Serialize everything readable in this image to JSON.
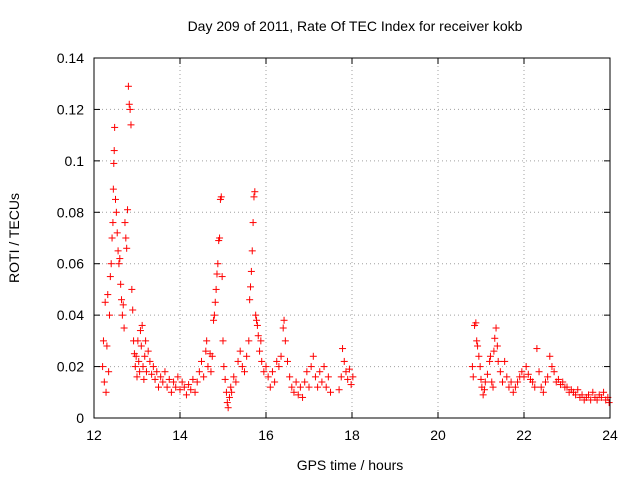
{
  "chart_data": {
    "type": "scatter",
    "title": "Day 209 of 2011, Rate Of TEC Index for receiver kokb",
    "xlabel": "GPS time / hours",
    "ylabel": "ROTI / TECUs",
    "xlim": [
      12,
      24
    ],
    "ylim": [
      0,
      0.14
    ],
    "xticks": [
      "12",
      "14",
      "16",
      "18",
      "20",
      "22",
      "24"
    ],
    "yticks": [
      "0",
      "0.02",
      "0.04",
      "0.06",
      "0.08",
      "0.1",
      "0.12",
      "0.14"
    ],
    "grid": true,
    "marker": "+",
    "color": "#ff0000",
    "points": [
      [
        12.2,
        0.02
      ],
      [
        12.22,
        0.03
      ],
      [
        12.24,
        0.014
      ],
      [
        12.26,
        0.045
      ],
      [
        12.28,
        0.01
      ],
      [
        12.3,
        0.028
      ],
      [
        12.32,
        0.048
      ],
      [
        12.34,
        0.018
      ],
      [
        12.36,
        0.04
      ],
      [
        12.38,
        0.055
      ],
      [
        12.4,
        0.06
      ],
      [
        12.42,
        0.07
      ],
      [
        12.44,
        0.076
      ],
      [
        12.45,
        0.089
      ],
      [
        12.46,
        0.099
      ],
      [
        12.47,
        0.104
      ],
      [
        12.48,
        0.113
      ],
      [
        12.5,
        0.085
      ],
      [
        12.52,
        0.08
      ],
      [
        12.54,
        0.072
      ],
      [
        12.56,
        0.065
      ],
      [
        12.58,
        0.06
      ],
      [
        12.6,
        0.062
      ],
      [
        12.62,
        0.052
      ],
      [
        12.64,
        0.046
      ],
      [
        12.66,
        0.04
      ],
      [
        12.68,
        0.044
      ],
      [
        12.7,
        0.035
      ],
      [
        12.72,
        0.076
      ],
      [
        12.74,
        0.07
      ],
      [
        12.76,
        0.066
      ],
      [
        12.78,
        0.081
      ],
      [
        12.8,
        0.129
      ],
      [
        12.82,
        0.122
      ],
      [
        12.84,
        0.12
      ],
      [
        12.86,
        0.114
      ],
      [
        12.88,
        0.05
      ],
      [
        12.9,
        0.042
      ],
      [
        12.92,
        0.03
      ],
      [
        12.94,
        0.025
      ],
      [
        12.96,
        0.02
      ],
      [
        12.98,
        0.024
      ],
      [
        13.0,
        0.016
      ],
      [
        13.02,
        0.03
      ],
      [
        13.04,
        0.022
      ],
      [
        13.06,
        0.018
      ],
      [
        13.08,
        0.034
      ],
      [
        13.1,
        0.028
      ],
      [
        13.12,
        0.036
      ],
      [
        13.14,
        0.02
      ],
      [
        13.16,
        0.015
      ],
      [
        13.18,
        0.024
      ],
      [
        13.2,
        0.03
      ],
      [
        13.22,
        0.018
      ],
      [
        13.26,
        0.026
      ],
      [
        13.3,
        0.022
      ],
      [
        13.34,
        0.017
      ],
      [
        13.38,
        0.02
      ],
      [
        13.42,
        0.015
      ],
      [
        13.46,
        0.018
      ],
      [
        13.5,
        0.012
      ],
      [
        13.55,
        0.016
      ],
      [
        13.6,
        0.014
      ],
      [
        13.65,
        0.018
      ],
      [
        13.7,
        0.012
      ],
      [
        13.75,
        0.015
      ],
      [
        13.8,
        0.01
      ],
      [
        13.85,
        0.014
      ],
      [
        13.9,
        0.012
      ],
      [
        13.95,
        0.016
      ],
      [
        14.0,
        0.011
      ],
      [
        14.05,
        0.014
      ],
      [
        14.1,
        0.012
      ],
      [
        14.15,
        0.009
      ],
      [
        14.2,
        0.013
      ],
      [
        14.25,
        0.011
      ],
      [
        14.3,
        0.015
      ],
      [
        14.35,
        0.01
      ],
      [
        14.4,
        0.014
      ],
      [
        14.45,
        0.018
      ],
      [
        14.5,
        0.022
      ],
      [
        14.55,
        0.016
      ],
      [
        14.6,
        0.026
      ],
      [
        14.62,
        0.03
      ],
      [
        14.65,
        0.02
      ],
      [
        14.7,
        0.025
      ],
      [
        14.72,
        0.018
      ],
      [
        14.75,
        0.024
      ],
      [
        14.78,
        0.038
      ],
      [
        14.8,
        0.04
      ],
      [
        14.82,
        0.045
      ],
      [
        14.84,
        0.05
      ],
      [
        14.86,
        0.056
      ],
      [
        14.88,
        0.06
      ],
      [
        14.9,
        0.069
      ],
      [
        14.92,
        0.07
      ],
      [
        14.94,
        0.085
      ],
      [
        14.96,
        0.086
      ],
      [
        14.98,
        0.055
      ],
      [
        15.0,
        0.03
      ],
      [
        15.02,
        0.02
      ],
      [
        15.05,
        0.015
      ],
      [
        15.08,
        0.01
      ],
      [
        15.1,
        0.006
      ],
      [
        15.12,
        0.004
      ],
      [
        15.15,
        0.008
      ],
      [
        15.18,
        0.012
      ],
      [
        15.2,
        0.01
      ],
      [
        15.25,
        0.016
      ],
      [
        15.3,
        0.014
      ],
      [
        15.35,
        0.022
      ],
      [
        15.4,
        0.026
      ],
      [
        15.45,
        0.02
      ],
      [
        15.5,
        0.018
      ],
      [
        15.55,
        0.024
      ],
      [
        15.6,
        0.03
      ],
      [
        15.62,
        0.046
      ],
      [
        15.64,
        0.051
      ],
      [
        15.66,
        0.057
      ],
      [
        15.68,
        0.065
      ],
      [
        15.7,
        0.076
      ],
      [
        15.72,
        0.086
      ],
      [
        15.74,
        0.088
      ],
      [
        15.76,
        0.04
      ],
      [
        15.78,
        0.038
      ],
      [
        15.8,
        0.036
      ],
      [
        15.82,
        0.032
      ],
      [
        15.85,
        0.026
      ],
      [
        15.88,
        0.03
      ],
      [
        15.9,
        0.022
      ],
      [
        15.95,
        0.018
      ],
      [
        16.0,
        0.02
      ],
      [
        16.05,
        0.016
      ],
      [
        16.1,
        0.012
      ],
      [
        16.15,
        0.018
      ],
      [
        16.2,
        0.014
      ],
      [
        16.25,
        0.022
      ],
      [
        16.3,
        0.02
      ],
      [
        16.35,
        0.024
      ],
      [
        16.4,
        0.035
      ],
      [
        16.42,
        0.038
      ],
      [
        16.45,
        0.03
      ],
      [
        16.5,
        0.022
      ],
      [
        16.55,
        0.016
      ],
      [
        16.6,
        0.012
      ],
      [
        16.65,
        0.01
      ],
      [
        16.7,
        0.014
      ],
      [
        16.75,
        0.009
      ],
      [
        16.8,
        0.012
      ],
      [
        16.85,
        0.008
      ],
      [
        16.9,
        0.014
      ],
      [
        16.95,
        0.018
      ],
      [
        17.0,
        0.012
      ],
      [
        17.05,
        0.02
      ],
      [
        17.1,
        0.024
      ],
      [
        17.15,
        0.016
      ],
      [
        17.2,
        0.012
      ],
      [
        17.25,
        0.018
      ],
      [
        17.3,
        0.014
      ],
      [
        17.35,
        0.02
      ],
      [
        17.4,
        0.012
      ],
      [
        17.45,
        0.016
      ],
      [
        17.5,
        0.01
      ],
      [
        17.7,
        0.011
      ],
      [
        17.75,
        0.016
      ],
      [
        17.78,
        0.027
      ],
      [
        17.82,
        0.022
      ],
      [
        17.86,
        0.018
      ],
      [
        17.9,
        0.015
      ],
      [
        17.94,
        0.019
      ],
      [
        17.98,
        0.013
      ],
      [
        18.02,
        0.016
      ],
      [
        20.8,
        0.02
      ],
      [
        20.82,
        0.016
      ],
      [
        20.85,
        0.036
      ],
      [
        20.88,
        0.037
      ],
      [
        20.9,
        0.03
      ],
      [
        20.92,
        0.028
      ],
      [
        20.95,
        0.024
      ],
      [
        20.98,
        0.02
      ],
      [
        21.0,
        0.015
      ],
      [
        21.02,
        0.012
      ],
      [
        21.05,
        0.009
      ],
      [
        21.08,
        0.011
      ],
      [
        21.1,
        0.014
      ],
      [
        21.15,
        0.017
      ],
      [
        21.2,
        0.022
      ],
      [
        21.22,
        0.024
      ],
      [
        21.25,
        0.014
      ],
      [
        21.28,
        0.012
      ],
      [
        21.3,
        0.026
      ],
      [
        21.32,
        0.031
      ],
      [
        21.35,
        0.035
      ],
      [
        21.38,
        0.028
      ],
      [
        21.4,
        0.022
      ],
      [
        21.45,
        0.018
      ],
      [
        21.5,
        0.014
      ],
      [
        21.55,
        0.022
      ],
      [
        21.6,
        0.016
      ],
      [
        21.65,
        0.012
      ],
      [
        21.7,
        0.014
      ],
      [
        21.75,
        0.01
      ],
      [
        21.8,
        0.012
      ],
      [
        21.85,
        0.014
      ],
      [
        21.9,
        0.016
      ],
      [
        21.95,
        0.018
      ],
      [
        22.0,
        0.016
      ],
      [
        22.05,
        0.02
      ],
      [
        22.1,
        0.017
      ],
      [
        22.15,
        0.015
      ],
      [
        22.2,
        0.014
      ],
      [
        22.25,
        0.012
      ],
      [
        22.3,
        0.027
      ],
      [
        22.35,
        0.018
      ],
      [
        22.4,
        0.012
      ],
      [
        22.45,
        0.01
      ],
      [
        22.5,
        0.014
      ],
      [
        22.55,
        0.016
      ],
      [
        22.6,
        0.024
      ],
      [
        22.65,
        0.02
      ],
      [
        22.7,
        0.018
      ],
      [
        22.75,
        0.014
      ],
      [
        22.8,
        0.015
      ],
      [
        22.85,
        0.013
      ],
      [
        22.9,
        0.014
      ],
      [
        22.95,
        0.012
      ],
      [
        23.0,
        0.012
      ],
      [
        23.05,
        0.01
      ],
      [
        23.1,
        0.011
      ],
      [
        23.15,
        0.01
      ],
      [
        23.2,
        0.009
      ],
      [
        23.25,
        0.011
      ],
      [
        23.3,
        0.008
      ],
      [
        23.35,
        0.009
      ],
      [
        23.4,
        0.007
      ],
      [
        23.45,
        0.008
      ],
      [
        23.5,
        0.009
      ],
      [
        23.55,
        0.007
      ],
      [
        23.6,
        0.01
      ],
      [
        23.65,
        0.008
      ],
      [
        23.7,
        0.007
      ],
      [
        23.75,
        0.009
      ],
      [
        23.8,
        0.008
      ],
      [
        23.85,
        0.01
      ],
      [
        23.9,
        0.007
      ],
      [
        23.95,
        0.008
      ],
      [
        23.98,
        0.006
      ]
    ]
  }
}
